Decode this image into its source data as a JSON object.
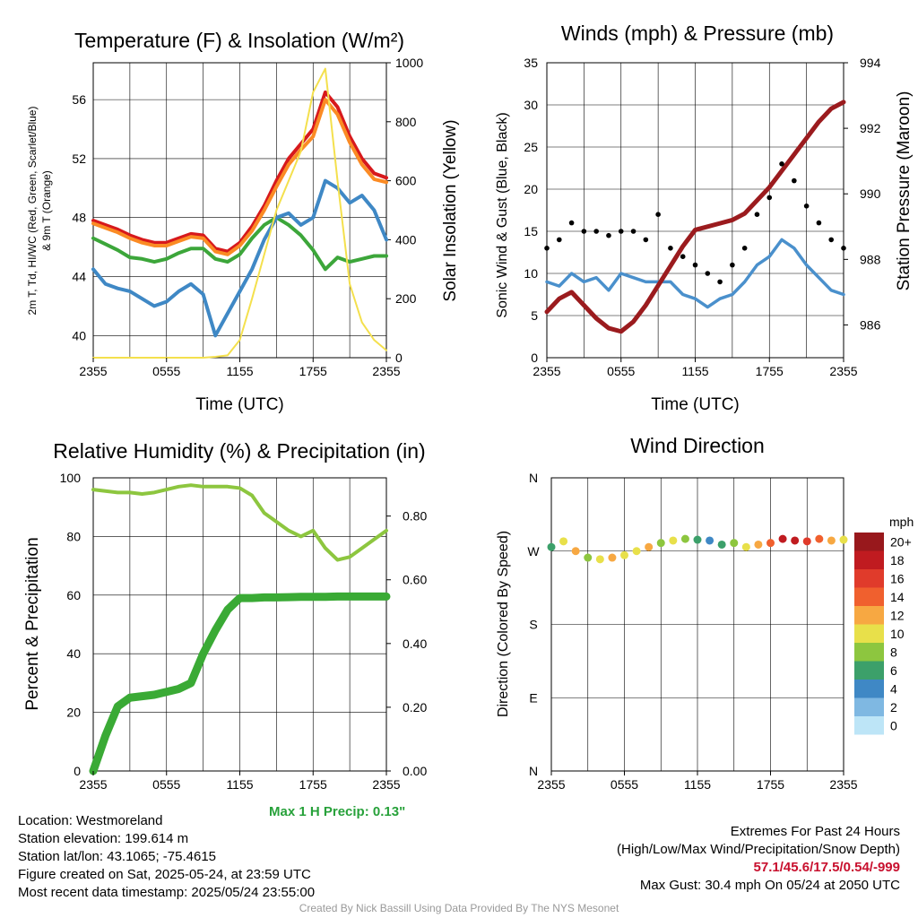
{
  "chart_data": [
    {
      "id": "temp",
      "type": "line",
      "title": "Temperature (F) & Insolation (W/m²)",
      "ylabel_lines": [
        "2m T, Td, HI/WC (Red, Green, Scarlet/Blue)",
        "& 9m T (Orange)"
      ],
      "y2label": "Solar Insolation (Yellow)",
      "xlabel": "Time (UTC)",
      "x_ticks": [
        "2355",
        "0555",
        "1155",
        "1755",
        "2355"
      ],
      "ylim": [
        38.5,
        58.5
      ],
      "y_ticks": [
        40,
        44,
        48,
        52,
        56
      ],
      "y2lim": [
        0,
        1000
      ],
      "y2_ticks": [
        0,
        200,
        400,
        600,
        800,
        1000
      ],
      "x_hours": [
        0,
        1,
        2,
        3,
        4,
        5,
        6,
        7,
        8,
        9,
        10,
        11,
        12,
        13,
        14,
        15,
        16,
        17,
        18,
        19,
        20,
        21,
        22,
        23,
        24
      ],
      "series": [
        {
          "color": "#d7191c",
          "axis": "left",
          "values": [
            47.8,
            47.5,
            47.2,
            46.8,
            46.5,
            46.3,
            46.3,
            46.6,
            46.9,
            46.8,
            45.9,
            45.7,
            46.3,
            47.4,
            48.8,
            50.5,
            52.0,
            53.0,
            54.0,
            56.5,
            55.5,
            53.5,
            52.0,
            51.0,
            50.7
          ]
        },
        {
          "color": "#fb8b24",
          "axis": "left",
          "values": [
            47.6,
            47.3,
            47.0,
            46.6,
            46.3,
            46.1,
            46.1,
            46.4,
            46.7,
            46.6,
            45.7,
            45.5,
            46.1,
            47.1,
            48.5,
            50.1,
            51.6,
            52.6,
            53.5,
            56.0,
            55.0,
            53.1,
            51.6,
            50.6,
            50.4
          ]
        },
        {
          "color": "#3ca63a",
          "axis": "left",
          "values": [
            46.6,
            46.2,
            45.8,
            45.3,
            45.2,
            45.0,
            45.2,
            45.6,
            45.9,
            45.9,
            45.2,
            45.0,
            45.5,
            46.6,
            47.5,
            48.0,
            47.5,
            46.8,
            45.8,
            44.5,
            45.3,
            45.0,
            45.2,
            45.4,
            45.4
          ]
        },
        {
          "color": "#3f88c5",
          "axis": "left",
          "values": [
            44.5,
            43.5,
            43.2,
            43.0,
            42.5,
            42.0,
            42.3,
            43.0,
            43.5,
            42.8,
            40.0,
            41.5,
            43.0,
            44.5,
            46.5,
            48.0,
            48.3,
            47.5,
            48.0,
            50.5,
            50.0,
            49.0,
            49.5,
            48.5,
            46.5
          ]
        },
        {
          "color": "#f4e04d",
          "axis": "right",
          "values": [
            0,
            0,
            0,
            0,
            0,
            0,
            0,
            0,
            0,
            0,
            3,
            8,
            60,
            200,
            350,
            500,
            600,
            700,
            900,
            980,
            600,
            250,
            120,
            60,
            25
          ]
        }
      ]
    },
    {
      "id": "winds",
      "type": "line",
      "title": "Winds (mph) & Pressure (mb)",
      "ylabel": "Sonic Wind & Gust (Blue, Black)",
      "y2label": "Station Pressure (Maroon)",
      "xlabel": "Time (UTC)",
      "x_ticks": [
        "2355",
        "0555",
        "1155",
        "1755",
        "2355"
      ],
      "ylim": [
        0,
        35
      ],
      "y_ticks": [
        0,
        5,
        10,
        15,
        20,
        25,
        30,
        35
      ],
      "y2lim": [
        985,
        994
      ],
      "y2_ticks": [
        986,
        988,
        990,
        992,
        994
      ],
      "x_hours": [
        0,
        1,
        2,
        3,
        4,
        5,
        6,
        7,
        8,
        9,
        10,
        11,
        12,
        13,
        14,
        15,
        16,
        17,
        18,
        19,
        20,
        21,
        22,
        23,
        24
      ],
      "series": [
        {
          "name_hidden": "wind",
          "color": "#4a90cc",
          "axis": "left",
          "values": [
            9,
            8.5,
            10,
            9,
            9.5,
            8,
            10,
            9.5,
            9,
            9,
            9,
            7.5,
            7,
            6,
            7,
            7.5,
            9,
            11,
            12,
            14,
            13,
            11,
            9.5,
            8,
            7.5
          ]
        },
        {
          "name_hidden": "pressure",
          "color": "#9b1b1e",
          "axis": "right",
          "values": [
            986.4,
            986.8,
            987.0,
            986.6,
            986.2,
            985.9,
            985.8,
            986.1,
            986.6,
            987.2,
            987.8,
            988.4,
            988.9,
            989.0,
            989.1,
            989.2,
            989.4,
            989.8,
            990.2,
            990.7,
            991.2,
            991.7,
            992.2,
            992.6,
            992.8
          ]
        },
        {
          "name_hidden": "gust",
          "color": "#000000",
          "axis": "left",
          "scatter": true,
          "values": [
            13,
            14,
            16,
            15,
            15,
            14.5,
            15,
            15,
            14,
            17,
            13,
            12,
            11,
            10,
            9,
            11,
            13,
            17,
            19,
            23,
            21,
            18,
            16,
            14,
            13
          ]
        }
      ]
    },
    {
      "id": "rh",
      "type": "line",
      "title": "Relative Humidity (%) & Precipitation (in)",
      "ylabel": "Percent & Precipitation",
      "x_ticks": [
        "2355",
        "0555",
        "1155",
        "1755",
        "2355"
      ],
      "ylim": [
        0,
        100
      ],
      "y_ticks": [
        0,
        20,
        40,
        60,
        80,
        100
      ],
      "y2lim": [
        0,
        0.92
      ],
      "y2_ticks": [
        "0.00",
        "0.20",
        "0.40",
        "0.60",
        "0.80"
      ],
      "x_hours": [
        0,
        1,
        2,
        3,
        4,
        5,
        6,
        7,
        8,
        9,
        10,
        11,
        12,
        13,
        14,
        15,
        16,
        17,
        18,
        19,
        20,
        21,
        22,
        23,
        24
      ],
      "series": [
        {
          "name_hidden": "rh",
          "color": "#8dc63f",
          "axis": "left",
          "values": [
            96,
            95.5,
            95,
            95,
            94.5,
            95,
            96,
            97,
            97.5,
            97,
            97,
            97,
            96.5,
            94,
            88,
            85,
            82,
            80,
            82,
            76,
            72,
            73,
            76,
            79,
            82
          ]
        },
        {
          "name_hidden": "precip",
          "color": "#3aaa35",
          "axis": "left",
          "values": [
            0,
            12,
            22,
            25,
            25.5,
            26,
            27,
            28,
            30,
            40,
            48,
            55,
            59,
            59,
            59.2,
            59.2,
            59.3,
            59.4,
            59.4,
            59.4,
            59.5,
            59.5,
            59.5,
            59.5,
            59.5
          ]
        }
      ],
      "note": "Max 1 H Precip: 0.13\""
    },
    {
      "id": "wdir",
      "type": "scatter",
      "title": "Wind Direction",
      "ylabel": "Direction (Colored By Speed)",
      "x_ticks": [
        "2355",
        "0555",
        "1155",
        "1755",
        "2355"
      ],
      "y_ticks": [
        "N",
        "E",
        "S",
        "W",
        "N"
      ],
      "ylim": [
        0,
        360
      ],
      "legend_title": "mph",
      "legend_labels": [
        "0",
        "2",
        "4",
        "6",
        "8",
        "10",
        "12",
        "14",
        "16",
        "18",
        "20+"
      ],
      "legend_colors": [
        "#bde5f7",
        "#7fb8e2",
        "#3f88c5",
        "#3ca06a",
        "#8dc63f",
        "#e8e04a",
        "#f7a842",
        "#f0602e",
        "#e03b2b",
        "#c01b20",
        "#98181c"
      ],
      "x_hours": [
        0,
        1,
        2,
        3,
        4,
        5,
        6,
        7,
        8,
        9,
        10,
        11,
        12,
        13,
        14,
        15,
        16,
        17,
        18,
        19,
        20,
        21,
        22,
        23,
        24
      ],
      "directions": [
        275,
        282,
        270,
        262,
        260,
        262,
        265,
        270,
        275,
        280,
        283,
        285,
        284,
        283,
        278,
        280,
        275,
        278,
        280,
        285,
        283,
        282,
        285,
        283,
        284
      ],
      "speeds": [
        6,
        9,
        12,
        8,
        10,
        12,
        9,
        10,
        11,
        8,
        9,
        7,
        5,
        4,
        6,
        8,
        10,
        12,
        14,
        18,
        17,
        15,
        13,
        11,
        10
      ]
    }
  ],
  "footer": {
    "location": "Location: Westmoreland",
    "elevation": "Station elevation: 199.614 m",
    "latlon": "Station lat/lon: 43.1065; -75.4615",
    "created": "Figure created on Sat, 2025-05-24, at 23:59 UTC",
    "recent": "Most recent data timestamp: 2025/05/24 23:55:00",
    "extremes_title": "Extremes For Past 24 Hours",
    "extremes_sub": "(High/Low/Max Wind/Precipitation/Snow Depth)",
    "extremes_values": "57.1/45.6/17.5/0.54/-999",
    "max_gust": "Max Gust: 30.4 mph On 05/24 at 2050 UTC",
    "credit": "Created By Nick Bassill Using Data Provided By The NYS Mesonet"
  }
}
